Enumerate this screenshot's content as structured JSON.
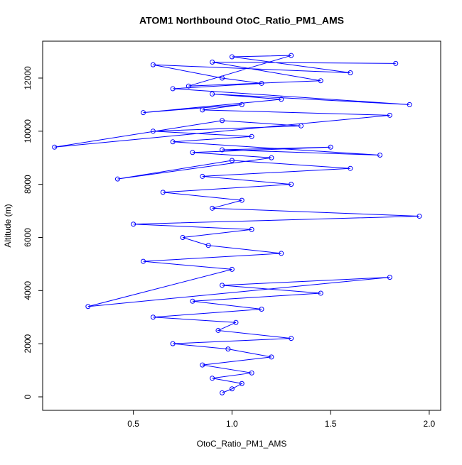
{
  "chart_data": {
    "type": "line",
    "title": "ATOM1 Northbound OtoC_Ratio_PM1_AMS",
    "x_label": "OtoC_Ratio_PM1_AMS",
    "y_label": "Altitude (m)",
    "x": [
      0.95,
      1.0,
      1.05,
      0.9,
      1.1,
      0.85,
      1.2,
      0.98,
      0.7,
      1.3,
      0.93,
      1.02,
      0.6,
      1.15,
      0.8,
      1.45,
      0.95,
      1.8,
      0.27,
      1.0,
      0.55,
      1.25,
      0.88,
      0.75,
      1.1,
      0.5,
      1.95,
      0.9,
      1.05,
      0.65,
      1.3,
      0.85,
      1.6,
      1.0,
      0.42,
      1.2,
      0.8,
      1.5,
      0.95,
      1.75,
      0.7,
      1.1,
      0.6,
      1.35,
      0.95,
      0.1,
      1.8,
      0.85,
      1.05,
      0.55,
      1.25,
      0.9,
      1.9,
      0.7,
      1.15,
      0.95,
      0.6,
      1.6,
      1.0,
      1.3,
      0.78,
      1.45,
      0.9,
      1.83
    ],
    "series": [
      {
        "color": "#0000ff",
        "values": [
          150,
          300,
          500,
          700,
          900,
          1200,
          1500,
          1800,
          2000,
          2200,
          2500,
          2800,
          3000,
          3300,
          3600,
          3900,
          4200,
          4500,
          3400,
          4800,
          5100,
          5400,
          5700,
          6000,
          6300,
          6500,
          6800,
          7100,
          7400,
          7700,
          8000,
          8300,
          8600,
          8900,
          8200,
          9000,
          9200,
          9400,
          9300,
          9100,
          9600,
          9800,
          10000,
          10200,
          10400,
          9400,
          10600,
          10800,
          11000,
          10700,
          11200,
          11400,
          11000,
          11600,
          11800,
          12000,
          12500,
          12200,
          12800,
          12850,
          11700,
          11900,
          12600,
          12550
        ]
      }
    ],
    "xlim": [
      0.04,
      2.058
    ],
    "ylim": [
      -508,
      13389
    ],
    "xticks": [
      0.5,
      {
        "value": 1,
        "label": "1.0"
      },
      1.5,
      {
        "value": 2,
        "label": "2.0"
      }
    ],
    "yticks": [
      0,
      2000,
      4000,
      6000,
      8000,
      10000,
      12000
    ]
  }
}
